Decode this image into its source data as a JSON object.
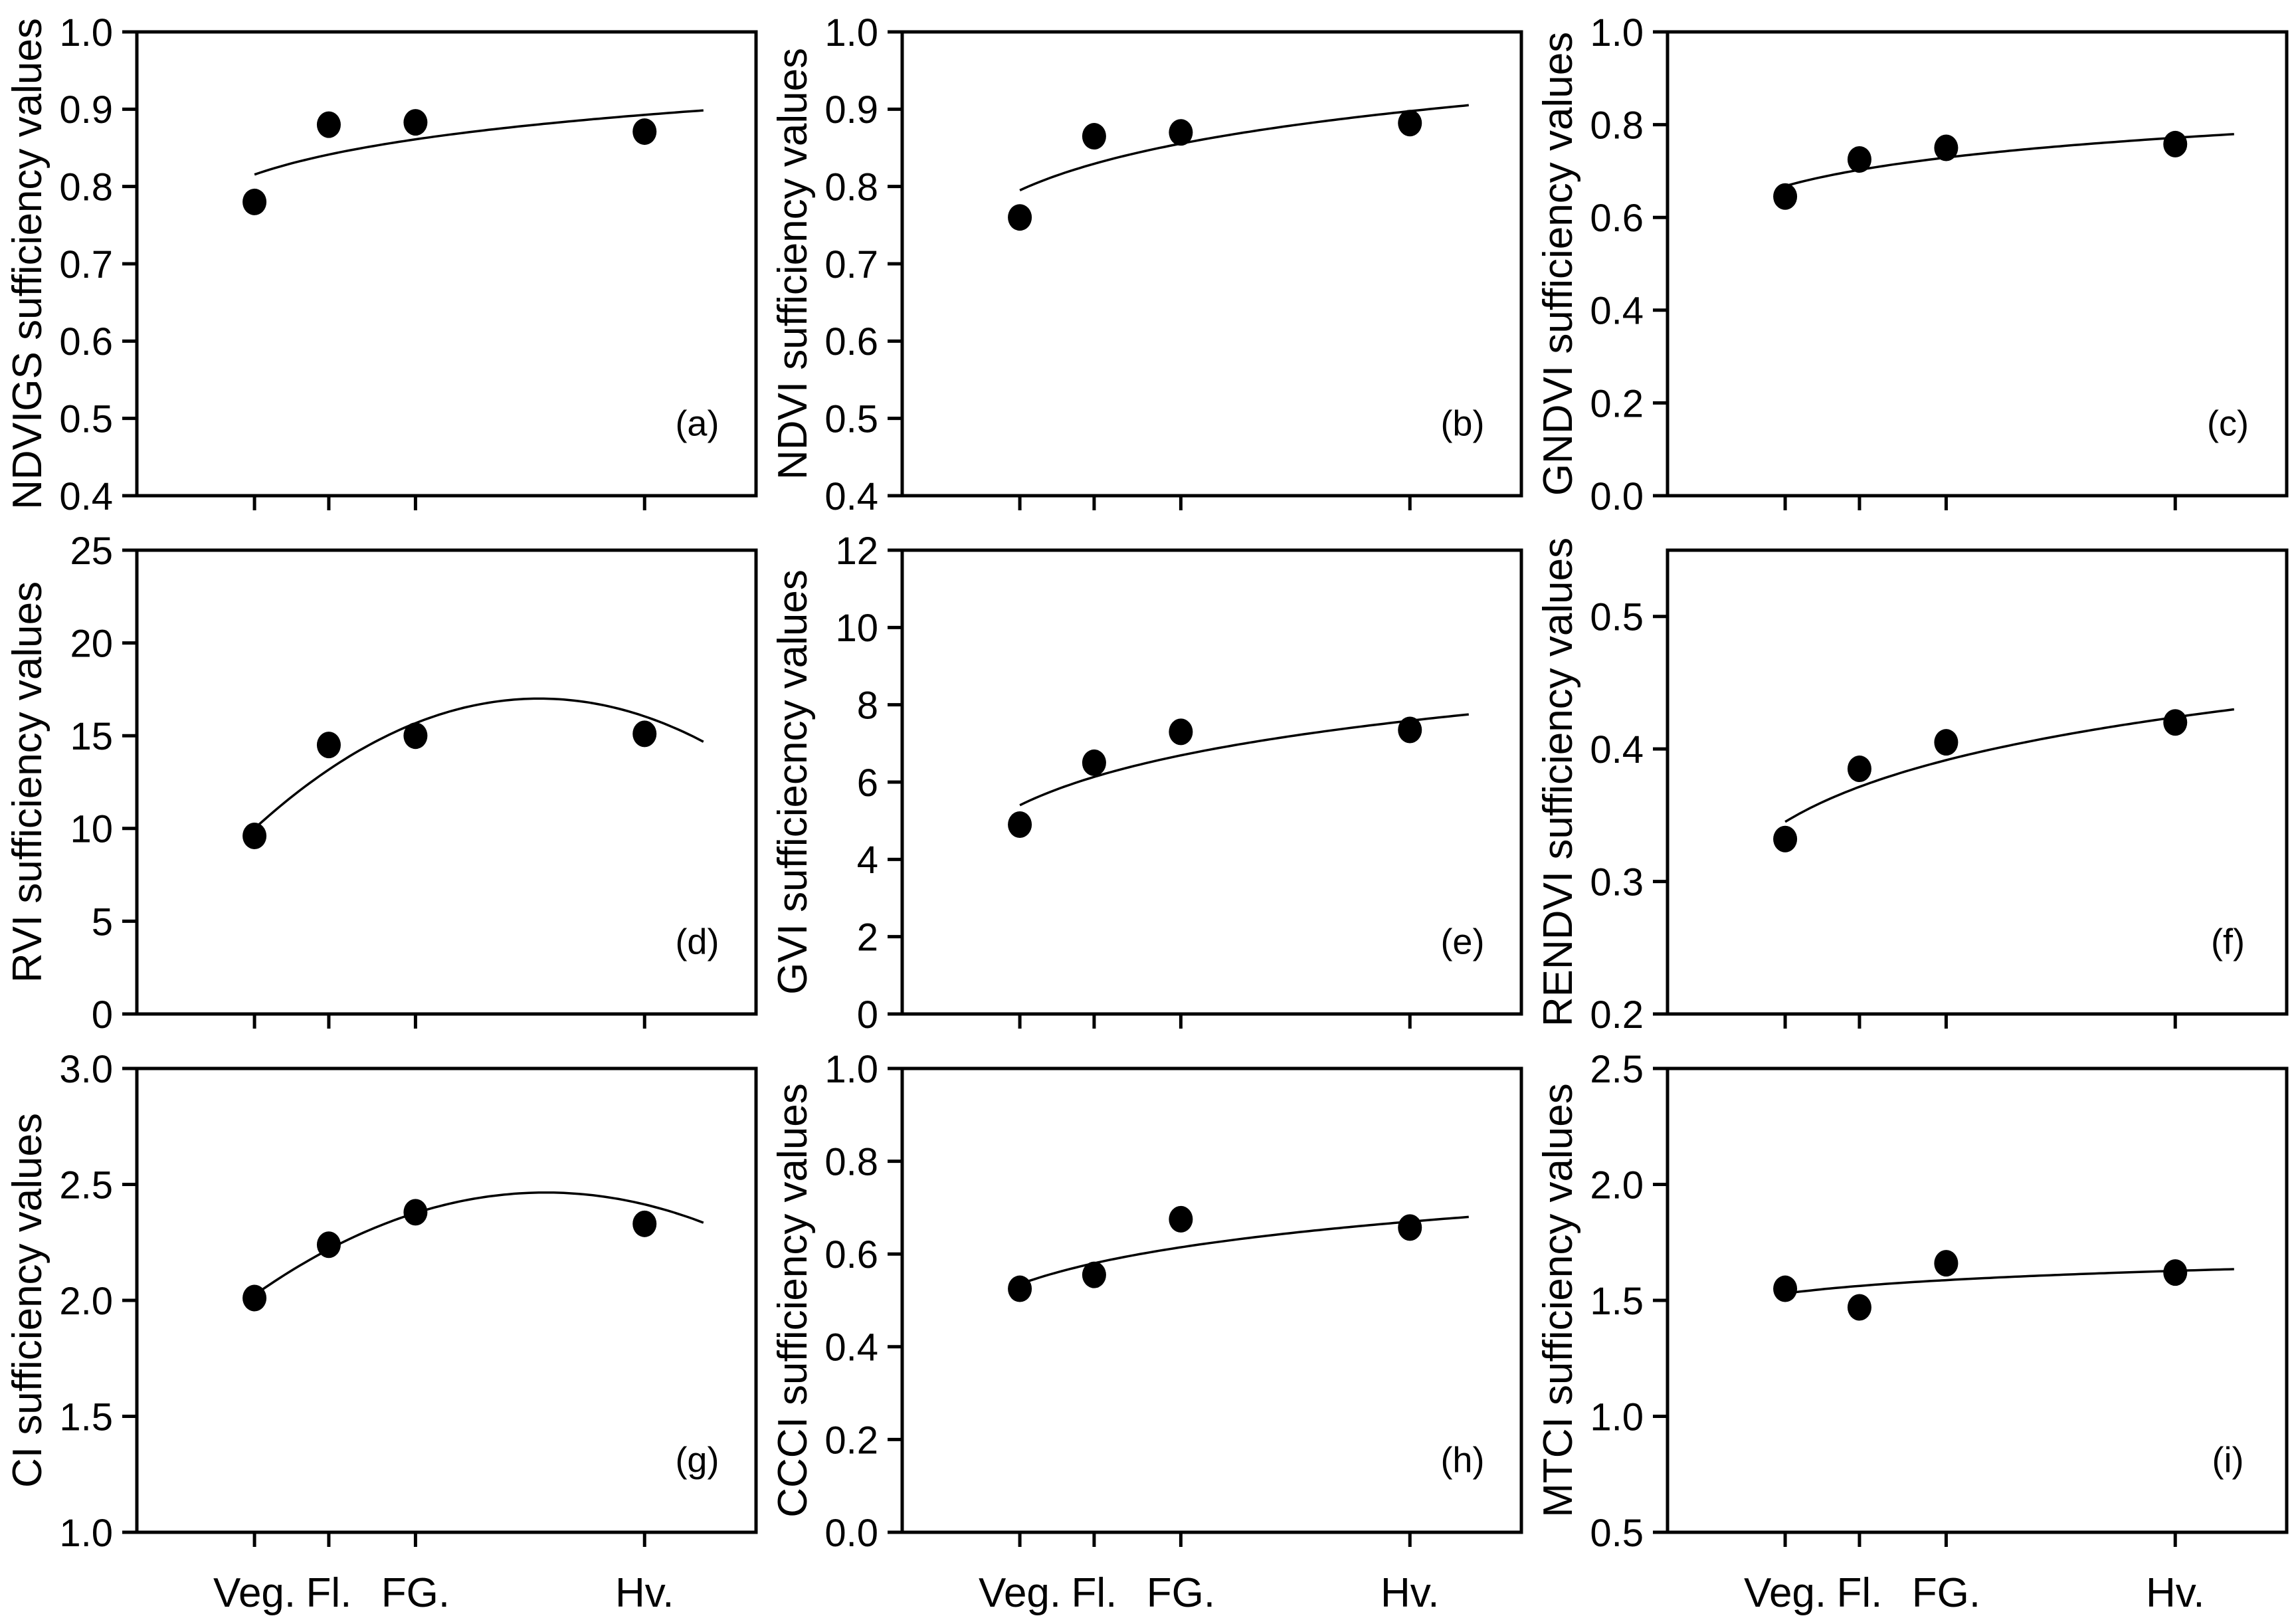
{
  "figure": {
    "background": "#ffffff",
    "ink": "#000000",
    "grid": "3x3 scatter panels with fitted curves, growth-stage x axis"
  },
  "x_axis": {
    "xlim": [
      0,
      100
    ],
    "tick_positions": [
      19,
      31,
      45,
      82
    ],
    "tick_labels": [
      "Veg.",
      "Fl.",
      "FG.",
      "Hv."
    ],
    "curve_domain": [
      19,
      91.5
    ],
    "labels_shown_on_bottom_row_only": true
  },
  "chart_data": [
    {
      "type": "scatter",
      "panel_letter": "(a)",
      "ylabel": "NDVIGS sufficiency values",
      "xlabel": "",
      "ylim": [
        0.4,
        1.0
      ],
      "ytick_values": [
        0.4,
        0.5,
        0.6,
        0.7,
        0.8,
        0.9,
        1.0
      ],
      "ytick_labels": [
        "0.4",
        "0.5",
        "0.6",
        "0.7",
        "0.8",
        "0.9",
        "1.0"
      ],
      "categories": [
        "Veg.",
        "Fl.",
        "FG.",
        "Hv."
      ],
      "x": [
        19,
        31,
        45,
        82
      ],
      "values": [
        0.78,
        0.88,
        0.883,
        0.871
      ],
      "fit": {
        "kind": "log",
        "a": 0.66,
        "b": 0.0528
      }
    },
    {
      "type": "scatter",
      "panel_letter": "(b)",
      "ylabel": "NDVI sufficiency values",
      "xlabel": "",
      "ylim": [
        0.4,
        1.0
      ],
      "ytick_values": [
        0.4,
        0.5,
        0.6,
        0.7,
        0.8,
        0.9,
        1.0
      ],
      "ytick_labels": [
        "0.4",
        "0.5",
        "0.6",
        "0.7",
        "0.8",
        "0.9",
        "1.0"
      ],
      "categories": [
        "Veg.",
        "Fl.",
        "FG.",
        "Hv."
      ],
      "x": [
        19,
        31,
        45,
        82
      ],
      "values": [
        0.76,
        0.865,
        0.87,
        0.882
      ],
      "fit": {
        "kind": "log",
        "a": 0.589,
        "b": 0.07
      }
    },
    {
      "type": "scatter",
      "panel_letter": "(c)",
      "ylabel": "GNDVI sufficiency values",
      "xlabel": "",
      "ylim": [
        0.0,
        1.0
      ],
      "ytick_values": [
        0.0,
        0.2,
        0.4,
        0.6,
        0.8,
        1.0
      ],
      "ytick_labels": [
        "0.0",
        "0.2",
        "0.4",
        "0.6",
        "0.8",
        "1.0"
      ],
      "categories": [
        "Veg.",
        "Fl.",
        "FG.",
        "Hv."
      ],
      "x": [
        19,
        31,
        45,
        82
      ],
      "values": [
        0.645,
        0.725,
        0.75,
        0.758
      ],
      "fit": {
        "kind": "log",
        "a": 0.458,
        "b": 0.0712
      }
    },
    {
      "type": "scatter",
      "panel_letter": "(d)",
      "ylabel": "RVI sufficiency values",
      "xlabel": "",
      "ylim": [
        0,
        25
      ],
      "ytick_values": [
        0,
        5,
        10,
        15,
        20,
        25
      ],
      "ytick_labels": [
        "0",
        "5",
        "10",
        "15",
        "20",
        "25"
      ],
      "categories": [
        "Veg.",
        "Fl.",
        "FG.",
        "Hv."
      ],
      "x": [
        19,
        31,
        45,
        82
      ],
      "values": [
        9.6,
        14.5,
        15.0,
        15.1
      ],
      "fit": {
        "kind": "quad",
        "a": 3.015,
        "b": 0.4303,
        "c": -0.00331
      }
    },
    {
      "type": "scatter",
      "panel_letter": "(e)",
      "ylabel": "GVI sufficiecncy values",
      "xlabel": "",
      "ylim": [
        0,
        12
      ],
      "ytick_values": [
        0,
        2,
        4,
        6,
        8,
        10,
        12
      ],
      "ytick_labels": [
        "0",
        "2",
        "4",
        "6",
        "8",
        "10",
        "12"
      ],
      "categories": [
        "Veg.",
        "Fl.",
        "FG.",
        "Hv."
      ],
      "x": [
        19,
        31,
        45,
        82
      ],
      "values": [
        4.9,
        6.5,
        7.3,
        7.35
      ],
      "fit": {
        "kind": "log",
        "a": 1.0,
        "b": 1.495
      }
    },
    {
      "type": "scatter",
      "panel_letter": "(f)",
      "ylabel": "RENDVI sufficiency values",
      "xlabel": "",
      "ylim": [
        0.2,
        0.55
      ],
      "ytick_values": [
        0.2,
        0.3,
        0.4,
        0.5
      ],
      "ytick_labels": [
        "0.2",
        "0.3",
        "0.4",
        "0.5"
      ],
      "categories": [
        "Veg.",
        "Fl.",
        "FG.",
        "Hv."
      ],
      "x": [
        19,
        31,
        45,
        82
      ],
      "values": [
        0.332,
        0.385,
        0.405,
        0.42
      ],
      "fit": {
        "kind": "log",
        "a": 0.186,
        "b": 0.054
      }
    },
    {
      "type": "scatter",
      "panel_letter": "(g)",
      "ylabel": "CI sufficiency values",
      "xlabel": "",
      "ylim": [
        1.0,
        3.0
      ],
      "ytick_values": [
        1.0,
        1.5,
        2.0,
        2.5,
        3.0
      ],
      "ytick_labels": [
        "1.0",
        "1.5",
        "2.0",
        "2.5",
        "3.0"
      ],
      "categories": [
        "Veg.",
        "Fl.",
        "FG.",
        "Hv."
      ],
      "x": [
        19,
        31,
        45,
        82
      ],
      "values": [
        2.01,
        2.24,
        2.38,
        2.33
      ],
      "fit": {
        "kind": "quad",
        "a": 1.5938,
        "b": 0.0264,
        "c": -0.0002
      }
    },
    {
      "type": "scatter",
      "panel_letter": "(h)",
      "ylabel": "CCCI sufficiency values",
      "xlabel": "",
      "ylim": [
        0.0,
        1.0
      ],
      "ytick_values": [
        0.0,
        0.2,
        0.4,
        0.6,
        0.8,
        1.0
      ],
      "ytick_labels": [
        "0.0",
        "0.2",
        "0.4",
        "0.6",
        "0.8",
        "1.0"
      ],
      "categories": [
        "Veg.",
        "Fl.",
        "FG.",
        "Hv."
      ],
      "x": [
        19,
        31,
        45,
        82
      ],
      "values": [
        0.525,
        0.555,
        0.675,
        0.657
      ],
      "fit": {
        "kind": "log",
        "a": 0.2635,
        "b": 0.0922
      }
    },
    {
      "type": "scatter",
      "panel_letter": "(i)",
      "ylabel": "MTCI sufficiency values",
      "xlabel": "",
      "ylim": [
        0.5,
        2.5
      ],
      "ytick_values": [
        0.5,
        1.0,
        1.5,
        2.0,
        2.5
      ],
      "ytick_labels": [
        "0.5",
        "1.0",
        "1.5",
        "2.0",
        "2.5"
      ],
      "categories": [
        "Veg.",
        "Fl.",
        "FG.",
        "Hv."
      ],
      "x": [
        19,
        31,
        45,
        82
      ],
      "values": [
        1.55,
        1.47,
        1.66,
        1.62
      ],
      "fit": {
        "kind": "log",
        "a": 1.333,
        "b": 0.0668
      }
    }
  ]
}
